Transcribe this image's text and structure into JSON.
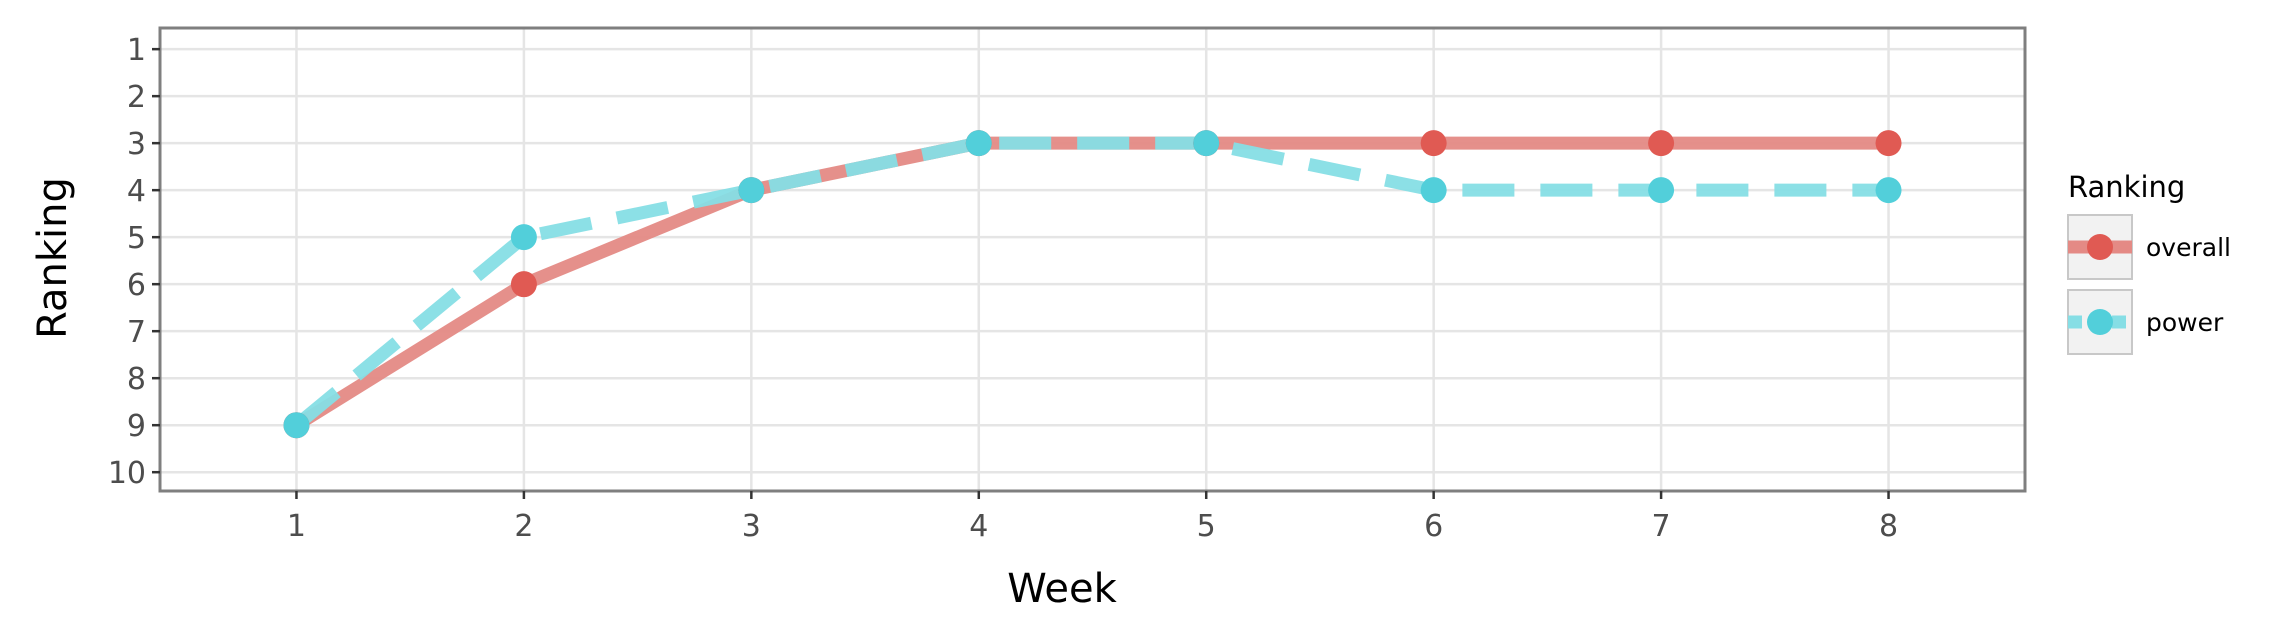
{
  "chart_data": {
    "type": "line",
    "xlabel": "Week",
    "ylabel": "Ranking",
    "x": [
      1,
      2,
      3,
      4,
      5,
      6,
      7,
      8
    ],
    "x_ticks": [
      "1",
      "2",
      "3",
      "4",
      "5",
      "6",
      "7",
      "8"
    ],
    "y_ticks": [
      "1",
      "2",
      "3",
      "4",
      "5",
      "6",
      "7",
      "8",
      "9",
      "10"
    ],
    "xlim": [
      0.4,
      8.6
    ],
    "ylim": [
      10.4,
      0.55
    ],
    "y_reversed": true,
    "grid": true,
    "legend": {
      "title": "Ranking",
      "position": "right"
    },
    "series": [
      {
        "name": "overall",
        "values": [
          9,
          6,
          4,
          3,
          3,
          3,
          3,
          3
        ],
        "color": "#e05a53",
        "line_color": "#e48a85",
        "style": "solid"
      },
      {
        "name": "power",
        "values": [
          9,
          5,
          4,
          3,
          3,
          4,
          4,
          4
        ],
        "color": "#52cfda",
        "line_color": "#86dee5",
        "style": "dashed"
      }
    ]
  }
}
